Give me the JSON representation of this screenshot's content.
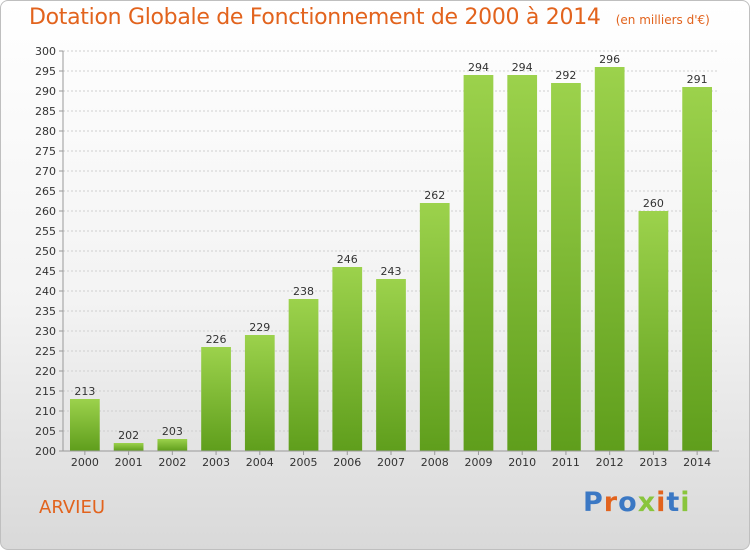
{
  "title": "Dotation Globale de Fonctionnement de 2000 à 2014",
  "unit": "(en milliers d'€)",
  "commune": "ARVIEU",
  "logo": {
    "text": "Proxiti",
    "colors": [
      "#3b78c4",
      "#e2631d",
      "#3b78c4",
      "#89c53c",
      "#e2631d",
      "#3b78c4",
      "#89c53c"
    ]
  },
  "colors": {
    "bar_top": "#9cd24c",
    "bar_bottom": "#5f9e1c",
    "title": "#e2631d"
  },
  "chart_data": {
    "type": "bar",
    "categories": [
      "2000",
      "2001",
      "2002",
      "2003",
      "2004",
      "2005",
      "2006",
      "2007",
      "2008",
      "2009",
      "2010",
      "2011",
      "2012",
      "2013",
      "2014"
    ],
    "values": [
      213,
      202,
      203,
      226,
      229,
      238,
      246,
      243,
      262,
      294,
      294,
      292,
      296,
      260,
      291
    ],
    "ylim": [
      200,
      300
    ],
    "ytick_step": 5,
    "grid": true
  }
}
